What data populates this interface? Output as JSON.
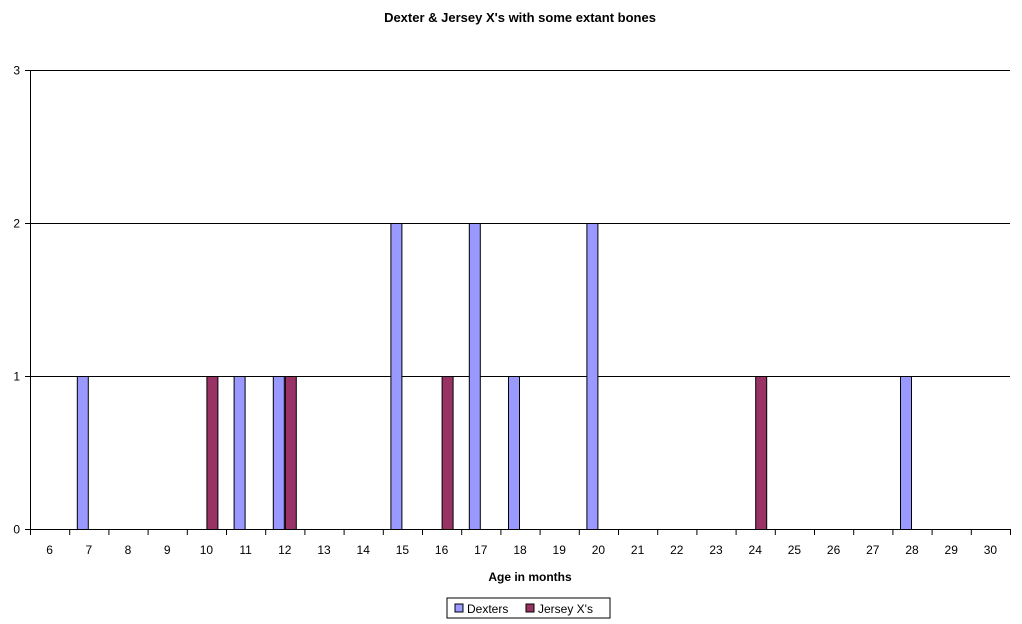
{
  "chart_data": {
    "type": "bar",
    "title": "Dexter & Jersey X's with some extant bones",
    "xlabel": "Age in months",
    "ylabel": "",
    "ylim": [
      0,
      3
    ],
    "yticks": [
      0,
      1,
      2,
      3
    ],
    "grid": true,
    "legend_position": "bottom",
    "categories": [
      "6",
      "7",
      "8",
      "9",
      "10",
      "11",
      "12",
      "13",
      "14",
      "15",
      "16",
      "17",
      "18",
      "19",
      "20",
      "21",
      "22",
      "23",
      "24",
      "25",
      "26",
      "27",
      "28",
      "29",
      "30"
    ],
    "series": [
      {
        "name": "Dexters",
        "color": "#9999ff",
        "values": [
          0,
          1,
          0,
          0,
          0,
          1,
          1,
          0,
          0,
          2,
          0,
          2,
          1,
          0,
          2,
          0,
          0,
          0,
          0,
          0,
          0,
          0,
          1,
          0,
          0
        ]
      },
      {
        "name": "Jersey X's",
        "color": "#993366",
        "values": [
          0,
          0,
          0,
          0,
          1,
          0,
          1,
          0,
          0,
          0,
          1,
          0,
          0,
          0,
          0,
          0,
          0,
          0,
          1,
          0,
          0,
          0,
          0,
          0,
          0
        ]
      }
    ]
  }
}
